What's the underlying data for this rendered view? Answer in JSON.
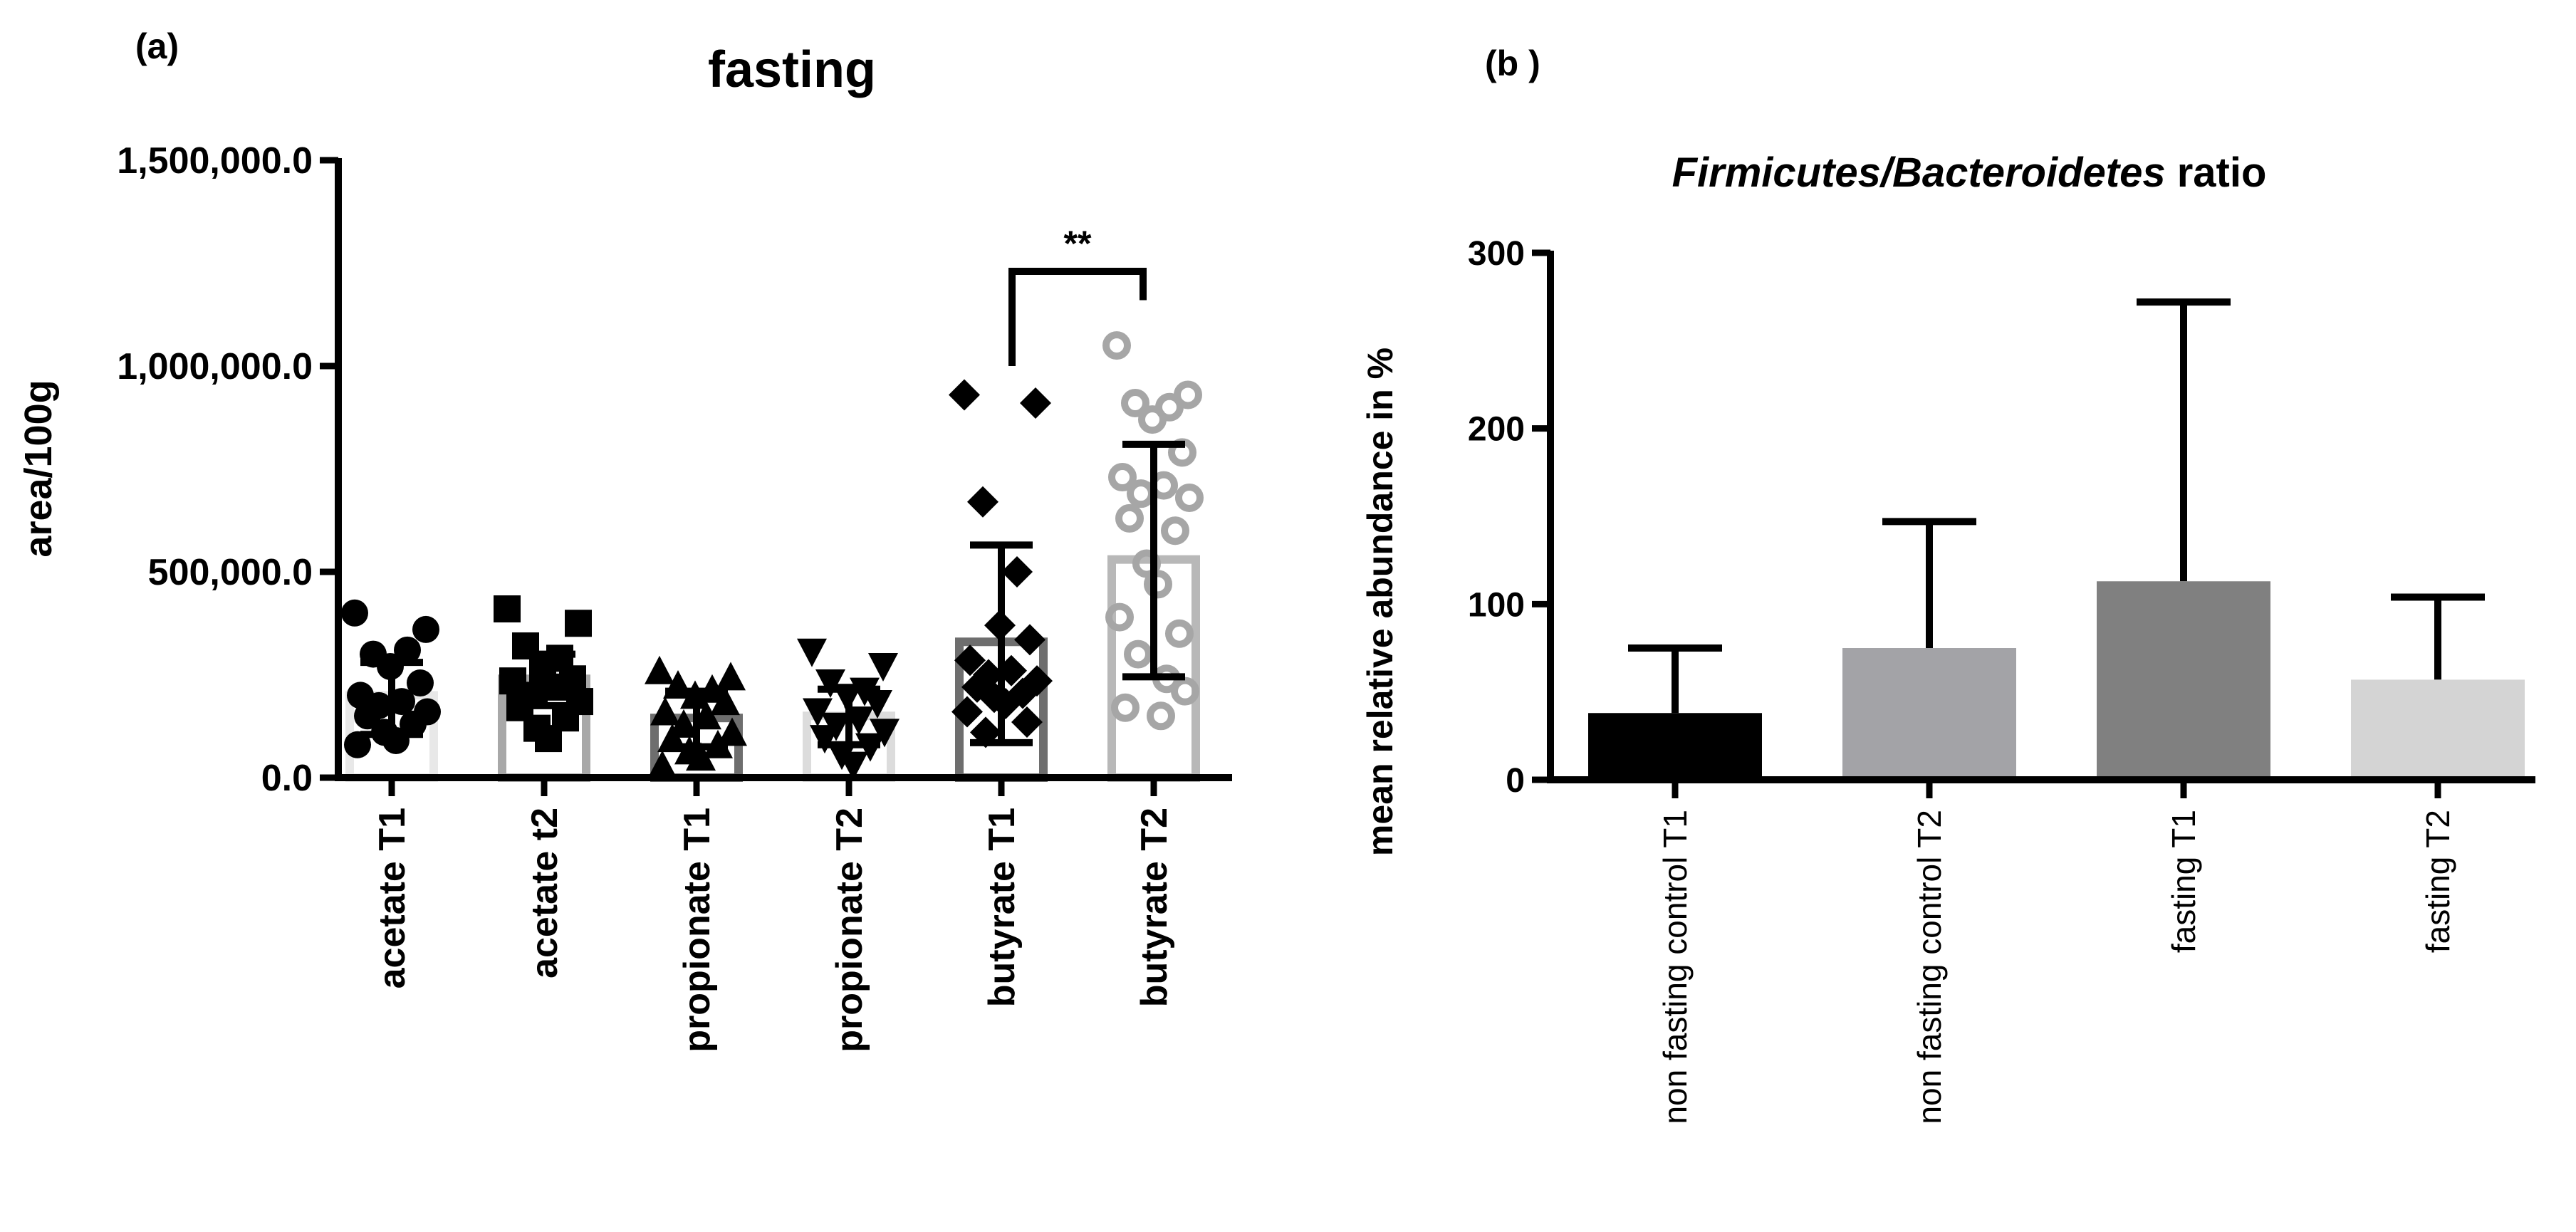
{
  "panel_a_label": "(a)",
  "panel_b_label": "(b )",
  "chart_data": [
    {
      "type": "bar",
      "title": "fasting",
      "xlabel": "",
      "ylabel": "area/100g",
      "ylim": [
        0,
        1500000
      ],
      "yticks": [
        0,
        500000,
        1000000,
        1500000
      ],
      "ytick_labels": [
        "0.0",
        "500,000.0",
        "1,000,000.0",
        "1,500,000.0"
      ],
      "categories": [
        "acetate T1",
        "acetate t2",
        "propionate T1",
        "propionate T2",
        "butyrate T1",
        "butyrate T2"
      ],
      "values": [
        200000,
        240000,
        145000,
        150000,
        330000,
        530000
      ],
      "error": [
        [
          105000,
          280000
        ],
        [
          175000,
          300000
        ],
        [
          75000,
          210000
        ],
        [
          80000,
          215000
        ],
        [
          85000,
          565000
        ],
        [
          245000,
          810000
        ]
      ],
      "bar_colors": [
        "#e8e8e8",
        "#a8a8a8",
        "#6e6e6e",
        "#dcdcdc",
        "#6e6e6e",
        "#b8b8b8"
      ],
      "point_markers": [
        "circle",
        "square",
        "triangle-up",
        "triangle-down",
        "diamond",
        "open-circle"
      ],
      "point_colors": [
        "#000000",
        "#000000",
        "#000000",
        "#000000",
        "#000000",
        "#a6a6a6"
      ],
      "points": [
        [
          400000,
          360000,
          300000,
          310000,
          270000,
          230000,
          200000,
          185000,
          175000,
          160000,
          150000,
          130000,
          110000,
          90000,
          80000
        ],
        [
          410000,
          375000,
          320000,
          290000,
          265000,
          240000,
          235000,
          220000,
          200000,
          185000,
          170000,
          145000,
          120000,
          95000
        ],
        [
          260000,
          245000,
          225000,
          215000,
          200000,
          185000,
          160000,
          150000,
          130000,
          110000,
          95000,
          80000,
          65000,
          50000,
          30000
        ],
        [
          305000,
          270000,
          230000,
          210000,
          195000,
          180000,
          160000,
          140000,
          125000,
          110000,
          95000,
          75000,
          55000,
          30000
        ],
        [
          930000,
          910000,
          670000,
          500000,
          370000,
          335000,
          285000,
          260000,
          250000,
          235000,
          220000,
          205000,
          195000,
          180000,
          160000,
          135000,
          110000
        ],
        [
          1050000,
          930000,
          910000,
          900000,
          870000,
          790000,
          730000,
          710000,
          690000,
          680000,
          630000,
          600000,
          520000,
          470000,
          390000,
          350000,
          300000,
          240000,
          210000,
          170000,
          150000
        ]
      ],
      "annotations": [
        {
          "text": "**",
          "between": [
            "butyrate T1",
            "butyrate T2"
          ]
        }
      ]
    },
    {
      "type": "bar",
      "title_italic": "Firmicutes/Bacteroidetes",
      "title_rest": " ratio",
      "xlabel": "",
      "ylabel": "mean relative abundance in %",
      "ylim": [
        0,
        300
      ],
      "yticks": [
        0,
        100,
        200,
        300
      ],
      "ytick_labels": [
        "0",
        "100",
        "200",
        "300"
      ],
      "categories": [
        "non fasting control T1",
        "non fasting control T2",
        "fasting T1",
        "fasting T2"
      ],
      "values": [
        38,
        75,
        113,
        57
      ],
      "error_upper": [
        75,
        147,
        272,
        104
      ],
      "bar_colors": [
        "#000000",
        "#a3a3a7",
        "#808080",
        "#d4d4d4"
      ]
    }
  ]
}
